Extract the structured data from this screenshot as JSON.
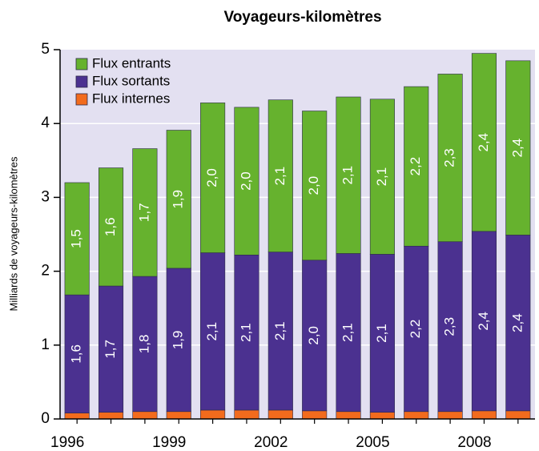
{
  "chart_data": {
    "type": "stacked_bar",
    "title": "Voyageurs-kilomètres",
    "y_label": "Milliards de voyageurs-kilomètres",
    "categories": [
      "1996",
      null,
      null,
      "1999",
      null,
      null,
      "2002",
      null,
      null,
      "2005",
      null,
      null,
      "2008",
      null
    ],
    "series": [
      {
        "name": "Flux internes",
        "color": "#f26b1d",
        "values": [
          0.08,
          0.09,
          0.1,
          0.1,
          0.12,
          0.12,
          0.12,
          0.11,
          0.1,
          0.09,
          0.1,
          0.1,
          0.11,
          0.11
        ]
      },
      {
        "name": "Flux sortants",
        "color": "#4b3190",
        "values": [
          1.6,
          1.71,
          1.83,
          1.94,
          2.13,
          2.1,
          2.14,
          2.04,
          2.14,
          2.14,
          2.24,
          2.3,
          2.43,
          2.38
        ],
        "value_labels": [
          "1,6",
          "1,7",
          "1,8",
          "1,9",
          "2,1",
          "2,1",
          "2,1",
          "2,0",
          "2,1",
          "2,1",
          "2,2",
          "2,3",
          "2,4",
          "2,4"
        ]
      },
      {
        "name": "Flux entrants",
        "color": "#66b22e",
        "values": [
          1.52,
          1.6,
          1.73,
          1.87,
          2.03,
          2.0,
          2.06,
          2.02,
          2.12,
          2.1,
          2.16,
          2.27,
          2.41,
          2.36
        ],
        "value_labels": [
          "1,5",
          "1,6",
          "1,7",
          "1,9",
          "2,0",
          "2,0",
          "2,1",
          "2,0",
          "2,1",
          "2,1",
          "2,2",
          "2,3",
          "2,4",
          "2,4"
        ]
      }
    ],
    "ylim": [
      0,
      5
    ],
    "yticks": [
      0,
      1,
      2,
      3,
      4,
      5
    ],
    "grid": true,
    "legend": "top-left"
  }
}
